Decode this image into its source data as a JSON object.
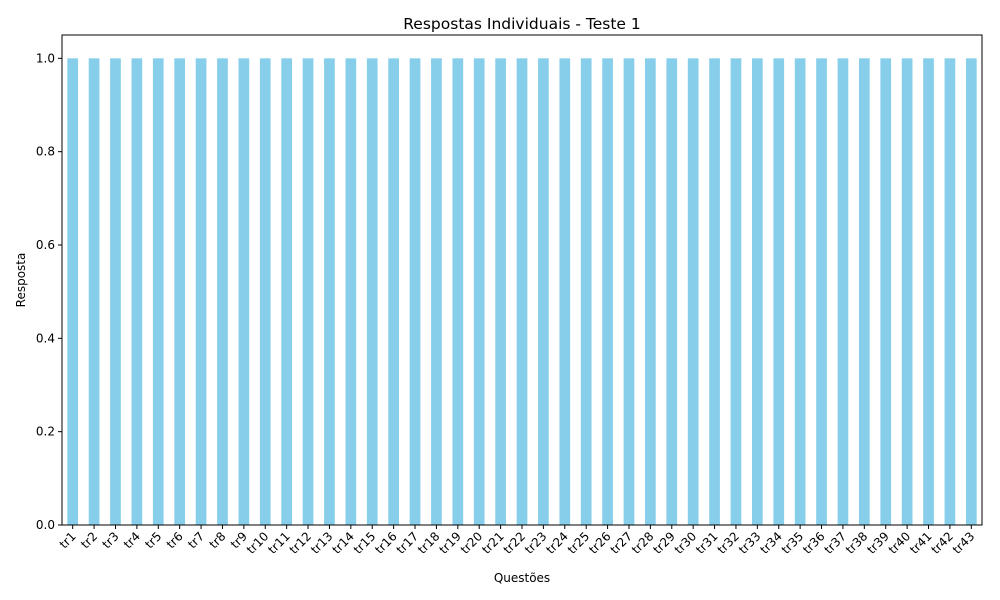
{
  "chart_data": {
    "type": "bar",
    "title": "Respostas Individuais - Teste 1",
    "xlabel": "Questões",
    "ylabel": "Resposta",
    "categories": [
      "tr1",
      "tr2",
      "tr3",
      "tr4",
      "tr5",
      "tr6",
      "tr7",
      "tr8",
      "tr9",
      "tr10",
      "tr11",
      "tr12",
      "tr13",
      "tr14",
      "tr15",
      "tr16",
      "tr17",
      "tr18",
      "tr19",
      "tr20",
      "tr21",
      "tr22",
      "tr23",
      "tr24",
      "tr25",
      "tr26",
      "tr27",
      "tr28",
      "tr29",
      "tr30",
      "tr31",
      "tr32",
      "tr33",
      "tr34",
      "tr35",
      "tr36",
      "tr37",
      "tr38",
      "tr39",
      "tr40",
      "tr41",
      "tr42",
      "tr43"
    ],
    "values": [
      1,
      1,
      1,
      1,
      1,
      1,
      1,
      1,
      1,
      1,
      1,
      1,
      1,
      1,
      1,
      1,
      1,
      1,
      1,
      1,
      1,
      1,
      1,
      1,
      1,
      1,
      1,
      1,
      1,
      1,
      1,
      1,
      1,
      1,
      1,
      1,
      1,
      1,
      1,
      1,
      1,
      1,
      1
    ],
    "ylim": [
      0,
      1.05
    ],
    "yticks": [
      "0.0",
      "0.2",
      "0.4",
      "0.6",
      "0.8",
      "1.0"
    ],
    "bar_color": "#87CEEB",
    "grid": false,
    "legend": "none",
    "xtick_rotation_deg": 45
  }
}
